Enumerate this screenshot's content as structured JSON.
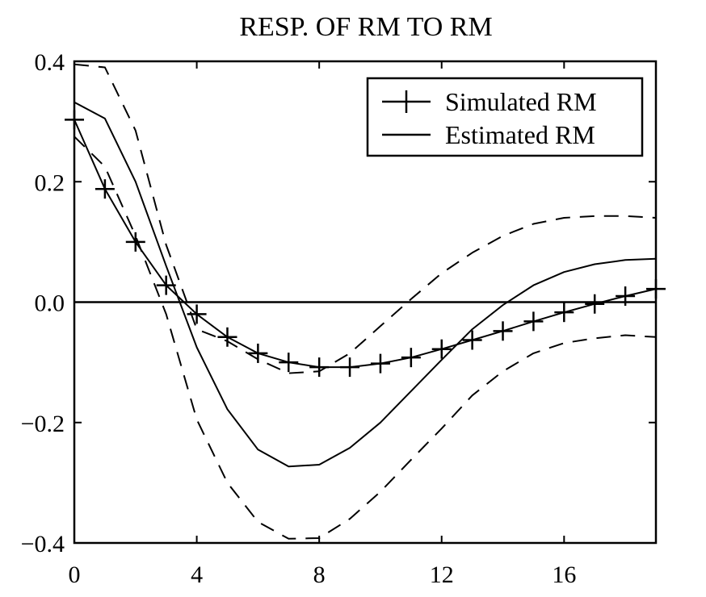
{
  "chart_data": {
    "type": "line",
    "title": "RESP. OF RM TO RM",
    "xlabel": "",
    "ylabel": "",
    "xlim": [
      0,
      19
    ],
    "ylim": [
      -0.4,
      0.4
    ],
    "x_ticks": [
      0,
      4,
      8,
      12,
      16
    ],
    "x_tick_labels": [
      "0",
      "4",
      "8",
      "12",
      "16"
    ],
    "y_ticks": [
      0.4,
      0.2,
      0.0,
      -0.2,
      -0.4
    ],
    "y_tick_labels": [
      "0.4",
      "0.2",
      "0.0",
      "−0.2",
      "−0.4"
    ],
    "grid": false,
    "zero_line": true,
    "legend_position": "top-right",
    "legend": [
      {
        "label": "Simulated RM",
        "style": "solid-plus"
      },
      {
        "label": "Estimated RM",
        "style": "solid"
      }
    ],
    "x": [
      0,
      1,
      2,
      3,
      4,
      5,
      6,
      7,
      8,
      9,
      10,
      11,
      12,
      13,
      14,
      15,
      16,
      17,
      18,
      19
    ],
    "series": [
      {
        "name": "Simulated RM",
        "style": "solid-plus",
        "values": [
          0.303,
          0.188,
          0.1,
          0.028,
          -0.02,
          -0.058,
          -0.085,
          -0.1,
          -0.108,
          -0.108,
          -0.102,
          -0.092,
          -0.078,
          -0.063,
          -0.048,
          -0.032,
          -0.017,
          -0.003,
          0.01,
          0.022
        ]
      },
      {
        "style": "solid",
        "values": [
          0.332,
          0.305,
          0.2,
          0.06,
          -0.075,
          -0.178,
          -0.245,
          -0.273,
          -0.27,
          -0.242,
          -0.2,
          -0.148,
          -0.096,
          -0.045,
          -0.005,
          0.028,
          0.05,
          0.063,
          0.07,
          0.072
        ]
      },
      {
        "style": "dashed",
        "values": [
          0.395,
          0.39,
          0.285,
          0.095,
          -0.045,
          -0.065,
          -0.095,
          -0.118,
          -0.115,
          -0.085,
          -0.04,
          0.005,
          0.048,
          0.082,
          0.11,
          0.13,
          0.14,
          0.143,
          0.143,
          0.14
        ]
      },
      {
        "style": "dashed",
        "values": [
          0.275,
          0.225,
          0.11,
          -0.02,
          -0.195,
          -0.3,
          -0.365,
          -0.393,
          -0.392,
          -0.36,
          -0.315,
          -0.262,
          -0.21,
          -0.155,
          -0.115,
          -0.085,
          -0.068,
          -0.06,
          -0.055,
          -0.058
        ]
      }
    ]
  }
}
